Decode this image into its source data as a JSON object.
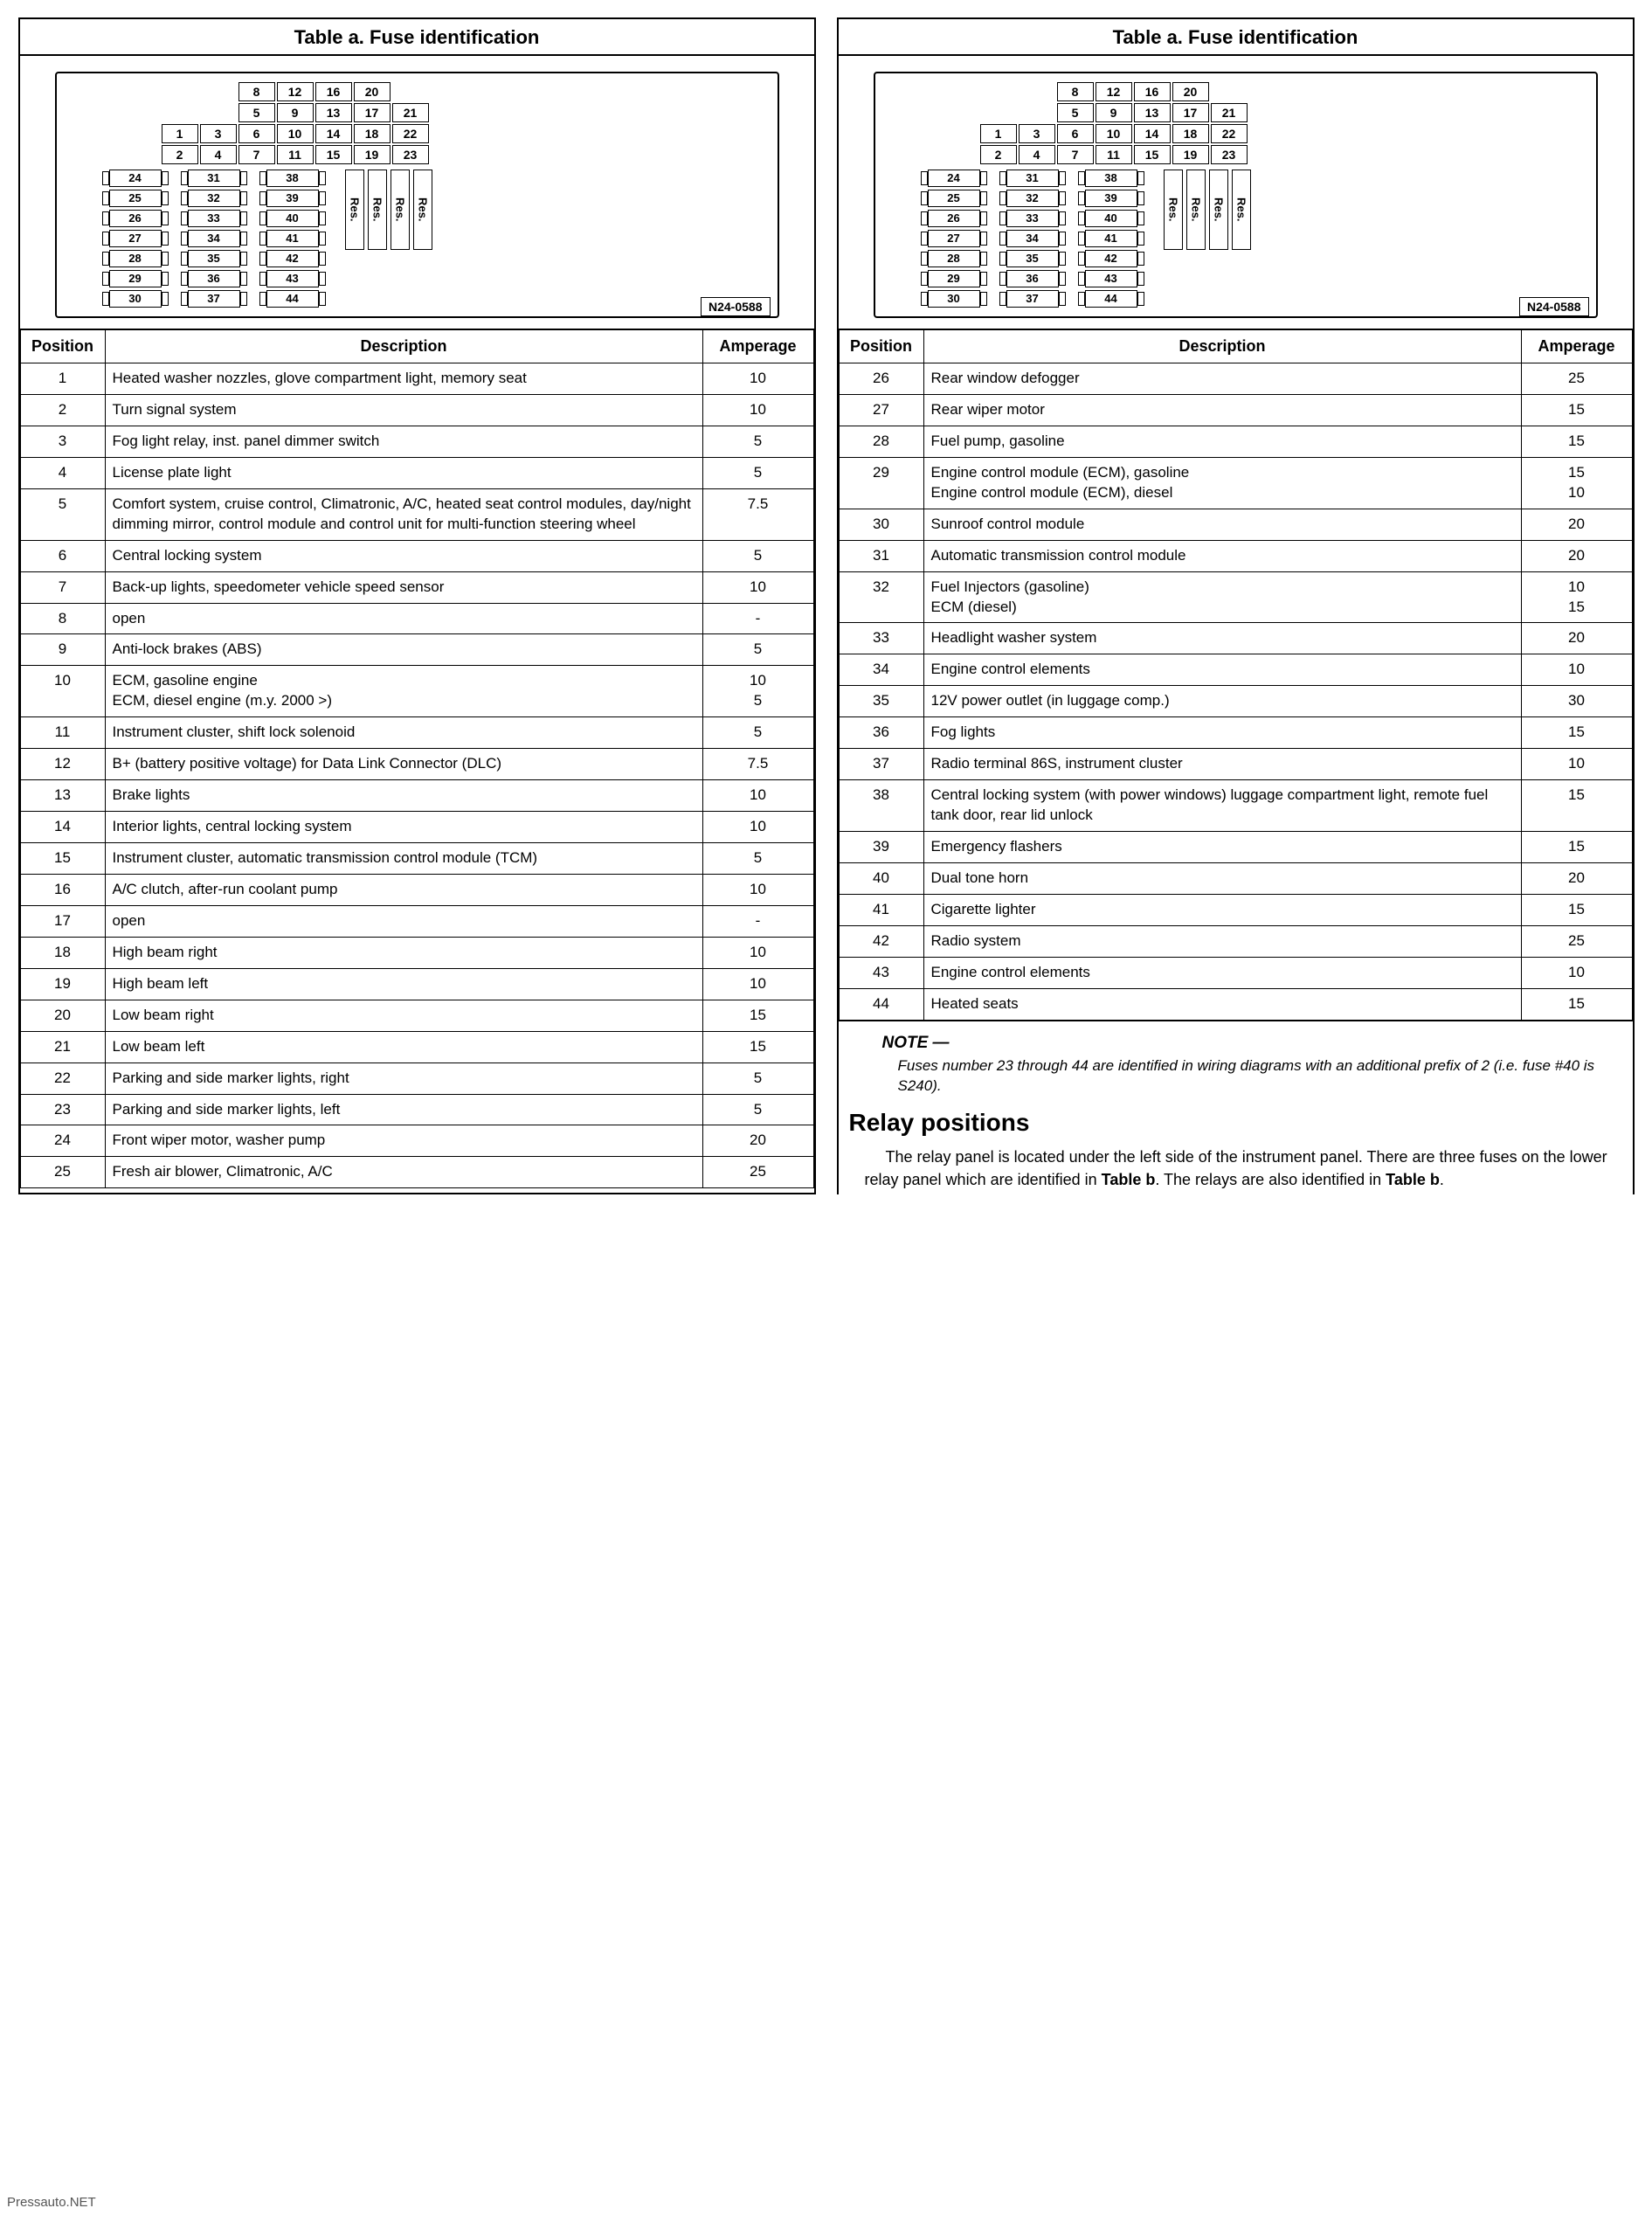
{
  "title": "Table a.  Fuse identification",
  "diagram_code": "N24-0588",
  "res_label": "Res.",
  "columns": {
    "position": "Position",
    "description": "Description",
    "amperage": "Amperage"
  },
  "top_grid": [
    [
      "",
      "",
      "8",
      "12",
      "16",
      "20"
    ],
    [
      "",
      "",
      "5",
      "9",
      "13",
      "17",
      "21"
    ],
    [
      "1",
      "3",
      "6",
      "10",
      "14",
      "18",
      "22"
    ],
    [
      "2",
      "4",
      "7",
      "11",
      "15",
      "19",
      "23"
    ]
  ],
  "mid_grid": [
    [
      "24",
      "31",
      "38"
    ],
    [
      "25",
      "32",
      "39"
    ],
    [
      "26",
      "33",
      "40"
    ],
    [
      "27",
      "34",
      "41"
    ],
    [
      "28",
      "35",
      "42"
    ],
    [
      "29",
      "36",
      "43"
    ],
    [
      "30",
      "37",
      "44"
    ]
  ],
  "left_rows": [
    {
      "pos": "1",
      "desc": "Heated washer nozzles, glove compartment light, memory seat",
      "amp": "10"
    },
    {
      "pos": "2",
      "desc": "Turn signal system",
      "amp": "10"
    },
    {
      "pos": "3",
      "desc": "Fog light relay, inst. panel dimmer switch",
      "amp": "5"
    },
    {
      "pos": "4",
      "desc": "License plate light",
      "amp": "5"
    },
    {
      "pos": "5",
      "desc": "Comfort system, cruise control, Climatronic, A/C, heated seat control modules, day/night dimming mirror, control module and control unit for multi-function steering wheel",
      "amp": "7.5"
    },
    {
      "pos": "6",
      "desc": "Central locking system",
      "amp": "5"
    },
    {
      "pos": "7",
      "desc": "Back-up lights, speedometer vehicle speed sensor",
      "amp": "10"
    },
    {
      "pos": "8",
      "desc": "open",
      "amp": "-"
    },
    {
      "pos": "9",
      "desc": "Anti-lock brakes (ABS)",
      "amp": "5"
    },
    {
      "pos": "10",
      "desc": "ECM, gasoline engine\nECM, diesel engine (m.y. 2000 >)",
      "amp": "10\n5"
    },
    {
      "pos": "11",
      "desc": "Instrument cluster, shift lock solenoid",
      "amp": "5"
    },
    {
      "pos": "12",
      "desc": "B+ (battery positive voltage) for Data Link Connector (DLC)",
      "amp": "7.5"
    },
    {
      "pos": "13",
      "desc": "Brake lights",
      "amp": "10"
    },
    {
      "pos": "14",
      "desc": "Interior lights, central locking system",
      "amp": "10"
    },
    {
      "pos": "15",
      "desc": "Instrument cluster, automatic transmission control module (TCM)",
      "amp": "5"
    },
    {
      "pos": "16",
      "desc": "A/C clutch, after-run coolant pump",
      "amp": "10"
    },
    {
      "pos": "17",
      "desc": "open",
      "amp": "-"
    },
    {
      "pos": "18",
      "desc": "High beam right",
      "amp": "10"
    },
    {
      "pos": "19",
      "desc": "High beam left",
      "amp": "10"
    },
    {
      "pos": "20",
      "desc": "Low beam right",
      "amp": "15"
    },
    {
      "pos": "21",
      "desc": "Low beam left",
      "amp": "15"
    },
    {
      "pos": "22",
      "desc": "Parking and side marker lights, right",
      "amp": "5"
    },
    {
      "pos": "23",
      "desc": "Parking and side marker lights, left",
      "amp": "5"
    },
    {
      "pos": "24",
      "desc": "Front wiper motor, washer pump",
      "amp": "20"
    },
    {
      "pos": "25",
      "desc": "Fresh air blower, Climatronic, A/C",
      "amp": "25"
    }
  ],
  "right_rows": [
    {
      "pos": "26",
      "desc": "Rear window defogger",
      "amp": "25"
    },
    {
      "pos": "27",
      "desc": "Rear wiper motor",
      "amp": "15"
    },
    {
      "pos": "28",
      "desc": "Fuel pump, gasoline",
      "amp": "15"
    },
    {
      "pos": "29",
      "desc": "Engine control module (ECM), gasoline\nEngine control module (ECM), diesel",
      "amp": "15\n10"
    },
    {
      "pos": "30",
      "desc": "Sunroof control module",
      "amp": "20"
    },
    {
      "pos": "31",
      "desc": "Automatic transmission control module",
      "amp": "20"
    },
    {
      "pos": "32",
      "desc": "Fuel Injectors (gasoline)\nECM (diesel)",
      "amp": "10\n15"
    },
    {
      "pos": "33",
      "desc": "Headlight washer system",
      "amp": "20"
    },
    {
      "pos": "34",
      "desc": "Engine control elements",
      "amp": "10"
    },
    {
      "pos": "35",
      "desc": "12V power outlet (in luggage comp.)",
      "amp": "30"
    },
    {
      "pos": "36",
      "desc": "Fog lights",
      "amp": "15"
    },
    {
      "pos": "37",
      "desc": "Radio terminal 86S, instrument cluster",
      "amp": "10"
    },
    {
      "pos": "38",
      "desc": "Central locking system (with power windows) luggage compartment light, remote fuel tank door, rear lid unlock",
      "amp": "15"
    },
    {
      "pos": "39",
      "desc": "Emergency flashers",
      "amp": "15"
    },
    {
      "pos": "40",
      "desc": "Dual tone horn",
      "amp": "20"
    },
    {
      "pos": "41",
      "desc": "Cigarette lighter",
      "amp": "15"
    },
    {
      "pos": "42",
      "desc": "Radio system",
      "amp": "25"
    },
    {
      "pos": "43",
      "desc": "Engine control elements",
      "amp": "10"
    },
    {
      "pos": "44",
      "desc": "Heated seats",
      "amp": "15"
    }
  ],
  "note": {
    "title": "NOTE —",
    "body": "Fuses number 23 through 44 are identified in wiring diagrams with an additional prefix of 2 (i.e. fuse #40 is S240)."
  },
  "relay": {
    "heading": "Relay positions",
    "body_pre": "The relay panel is located under the left side of the instrument panel. There are three fuses on the lower relay panel which are identified in ",
    "b1": "Table b",
    "body_mid": ". The relays are also identified in ",
    "b2": "Table b",
    "body_post": "."
  },
  "watermark": "Pressauto.NET",
  "style": {
    "border_color": "#000000",
    "bg_color": "#ffffff",
    "title_fontsize": 22,
    "header_fontsize": 18,
    "cell_fontsize": 17,
    "heading_fontsize": 28
  }
}
